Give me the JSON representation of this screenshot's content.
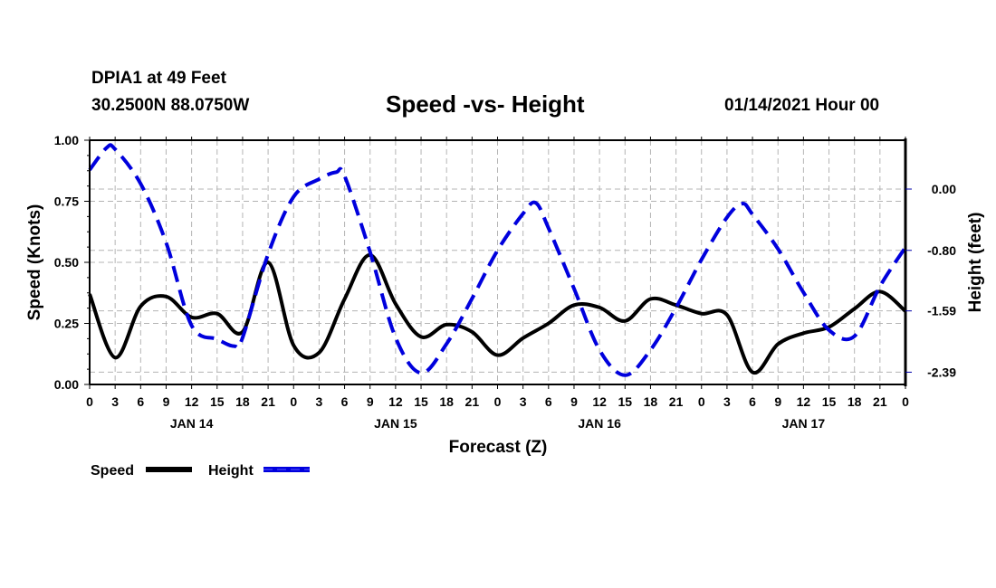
{
  "header": {
    "station": "DPIA1 at 49 Feet",
    "coords": "30.2500N 88.0750W",
    "title": "Speed -vs- Height",
    "datetime": "01/14/2021 Hour 00"
  },
  "colors": {
    "speed": "#000000",
    "height": "#0000dd",
    "grid": "#b4b4b4"
  },
  "chart_data": {
    "type": "line",
    "title": "Speed -vs- Height",
    "xlabel": "Forecast (Z)",
    "ylabel": "Speed (Knots)",
    "y2label": "Height (feet)",
    "xlim": [
      0,
      96
    ],
    "ylim": [
      0,
      1.0
    ],
    "y2lim": [
      -2.6,
      0.4
    ],
    "grid": true,
    "legend_position": "bottom-left",
    "x_tick_labels": [
      "0",
      "3",
      "6",
      "9",
      "12",
      "15",
      "18",
      "21",
      "0",
      "3",
      "6",
      "9",
      "12",
      "15",
      "18",
      "21",
      "0",
      "3",
      "6",
      "9",
      "12",
      "15",
      "18",
      "21",
      "0",
      "3",
      "6",
      "9",
      "12",
      "15",
      "18",
      "21",
      "0"
    ],
    "day_labels": [
      {
        "label": "JAN 14",
        "hour": 12
      },
      {
        "label": "JAN 15",
        "hour": 36
      },
      {
        "label": "JAN 16",
        "hour": 60
      },
      {
        "label": "JAN 17",
        "hour": 84
      }
    ],
    "y_ticks": [
      {
        "value": 0.0,
        "label": "0.00"
      },
      {
        "value": 0.25,
        "label": "0.25"
      },
      {
        "value": 0.5,
        "label": "0.50"
      },
      {
        "value": 0.75,
        "label": "0.75"
      },
      {
        "value": 1.0,
        "label": "1.00"
      }
    ],
    "y2_ticks": [
      {
        "value": 0.0,
        "label": "0.00"
      },
      {
        "value": -0.8,
        "label": "-0.80"
      },
      {
        "value": -1.59,
        "label": "-1.59"
      },
      {
        "value": -2.39,
        "label": "-2.39"
      }
    ],
    "series": [
      {
        "name": "Speed",
        "axis": "left",
        "style": "solid",
        "x": [
          0,
          3,
          6,
          9,
          12,
          15,
          18,
          21,
          24,
          27,
          30,
          33,
          36,
          39,
          42,
          45,
          48,
          51,
          54,
          57,
          60,
          63,
          66,
          69,
          72,
          75,
          78,
          81,
          84,
          87,
          90,
          93,
          96
        ],
        "values": [
          0.37,
          0.11,
          0.32,
          0.36,
          0.275,
          0.29,
          0.215,
          0.5,
          0.16,
          0.13,
          0.35,
          0.53,
          0.33,
          0.195,
          0.245,
          0.215,
          0.12,
          0.19,
          0.25,
          0.325,
          0.315,
          0.26,
          0.35,
          0.325,
          0.29,
          0.285,
          0.05,
          0.165,
          0.21,
          0.235,
          0.31,
          0.38,
          0.3
        ]
      },
      {
        "name": "Height",
        "axis": "right",
        "style": "dashed",
        "x": [
          0,
          2,
          3,
          6,
          9,
          12,
          15,
          17,
          18,
          21,
          24,
          27,
          29,
          30,
          33,
          36,
          39,
          42,
          45,
          48,
          51,
          52.5,
          54,
          57,
          60,
          63,
          66,
          69,
          72,
          75,
          76.8,
          78,
          81,
          84,
          87,
          90,
          93,
          96
        ],
        "values": [
          0.25,
          0.54,
          0.52,
          0.07,
          -0.7,
          -1.78,
          -1.96,
          -2.05,
          -1.94,
          -0.85,
          -0.1,
          0.13,
          0.22,
          0.17,
          -0.82,
          -1.94,
          -2.4,
          -2.02,
          -1.43,
          -0.8,
          -0.32,
          -0.18,
          -0.51,
          -1.3,
          -2.1,
          -2.43,
          -2.1,
          -1.55,
          -0.92,
          -0.37,
          -0.19,
          -0.33,
          -0.78,
          -1.35,
          -1.84,
          -1.92,
          -1.27,
          -0.76
        ]
      }
    ]
  },
  "legend": {
    "speed_label": "Speed",
    "height_label": "Height"
  }
}
